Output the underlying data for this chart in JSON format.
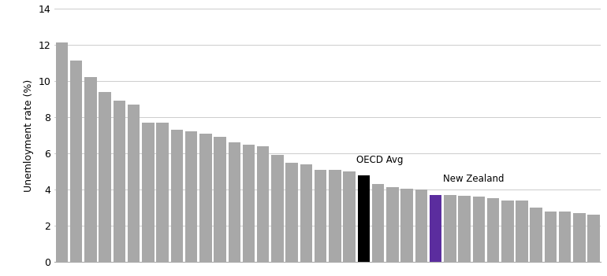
{
  "values": [
    12.1,
    11.1,
    10.2,
    9.4,
    8.9,
    8.7,
    7.7,
    7.7,
    7.3,
    7.2,
    7.1,
    6.9,
    6.6,
    6.5,
    6.4,
    5.9,
    5.5,
    5.4,
    5.1,
    5.1,
    5.0,
    4.8,
    4.3,
    4.15,
    4.05,
    4.0,
    3.7,
    3.7,
    3.65,
    3.6,
    3.55,
    3.4,
    3.4,
    3.0,
    2.8,
    2.8,
    2.7,
    2.6
  ],
  "oecd_index": 21,
  "nz_index": 26,
  "oecd_avg": 4.8,
  "nz_value": 3.7,
  "bar_color_default": "#a8a8a8",
  "bar_color_oecd": "#000000",
  "bar_color_nz": "#5b2d9e",
  "ylabel": "Unemloyment rate (%)",
  "ylim": [
    0,
    14
  ],
  "yticks": [
    0,
    2,
    4,
    6,
    8,
    10,
    12,
    14
  ],
  "annotation_oecd": "OECD Avg",
  "annotation_nz": "New Zealand",
  "annotation_fontsize": 8.5,
  "grid_color": "#cccccc",
  "background_color": "#ffffff"
}
